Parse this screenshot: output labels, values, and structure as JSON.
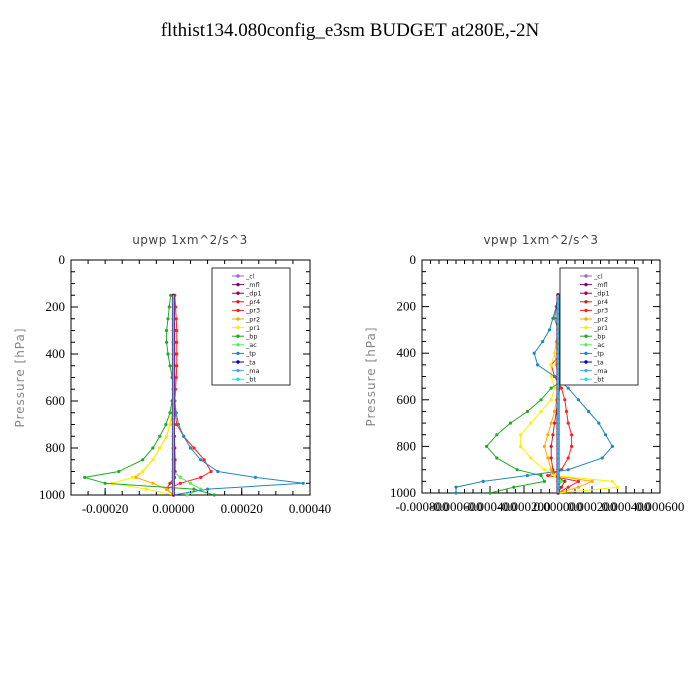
{
  "title": "flthist134.080config_e3sm  BUDGET at280E,-2N",
  "chart_data": [
    {
      "type": "line",
      "title": "upwp   1xm^2/s^3",
      "ylabel": "Pressure [hPa]",
      "xlabel": "",
      "xlim": [
        -0.0003,
        0.0004
      ],
      "ylim": [
        1000,
        0
      ],
      "xticks": [
        -0.0002,
        0.0,
        0.0002,
        0.0004
      ],
      "xtick_labels": [
        "-0.00020",
        "0.00000",
        "0.00020",
        "0.00040"
      ],
      "yticks": [
        0,
        200,
        400,
        600,
        800,
        1000
      ],
      "ytick_labels": [
        "0",
        "200",
        "400",
        "600",
        "800",
        "1000"
      ],
      "legend_position": "top-right",
      "pressure": [
        150,
        200,
        250,
        300,
        350,
        400,
        450,
        500,
        550,
        600,
        650,
        700,
        750,
        800,
        850,
        900,
        925,
        950,
        975,
        1000
      ],
      "series": [
        {
          "name": "_cl",
          "color": "#9966cc",
          "values": [
            0,
            0,
            0,
            0,
            0,
            0,
            0,
            0,
            0,
            0,
            0,
            0,
            0,
            0,
            0,
            0,
            0,
            0,
            0,
            0
          ]
        },
        {
          "name": "_mfl",
          "color": "#7a0a6e",
          "values": [
            0,
            0,
            0,
            0,
            0,
            0,
            0,
            0,
            0,
            0,
            0,
            0,
            0,
            0,
            0,
            0,
            0,
            0,
            0,
            0
          ]
        },
        {
          "name": "_dp1",
          "color": "#a00050",
          "values": [
            0,
            0,
            0,
            0,
            0,
            0,
            0,
            0,
            0,
            0,
            0,
            0,
            0,
            0,
            0,
            0,
            0,
            0,
            0,
            0
          ]
        },
        {
          "name": "_pr4",
          "color": "#cc2222",
          "values": [
            2e-06,
            3e-06,
            3e-06,
            4e-06,
            4e-06,
            4e-06,
            4e-06,
            4e-06,
            3e-06,
            3e-06,
            2e-06,
            2e-06,
            3e-06,
            4e-06,
            5e-06,
            5e-06,
            3e-06,
            -1e-05,
            -2e-05,
            0
          ]
        },
        {
          "name": "_pr3",
          "color": "#ff2020",
          "values": [
            4e-06,
            6e-06,
            8e-06,
            1e-05,
            1e-05,
            1e-05,
            1e-05,
            8e-06,
            6e-06,
            4e-06,
            5e-06,
            1e-05,
            3e-05,
            6e-05,
            9e-05,
            0.00011,
            8e-05,
            2e-05,
            -2e-05,
            0
          ]
        },
        {
          "name": "_pr2",
          "color": "#ffaa00",
          "values": [
            0,
            0,
            0,
            0,
            0,
            0,
            0,
            0,
            0,
            0,
            0,
            -1e-05,
            -2e-05,
            -4e-05,
            -6e-05,
            -9e-05,
            -0.00011,
            -6e-05,
            -2e-05,
            0
          ]
        },
        {
          "name": "_pr1",
          "color": "#ffee00",
          "values": [
            0,
            0,
            0,
            0,
            0,
            0,
            0,
            0,
            0,
            0,
            -5e-06,
            -1e-05,
            -2e-05,
            -4e-05,
            -6e-05,
            -9e-05,
            -0.00012,
            -0.00018,
            -8e-05,
            0
          ]
        },
        {
          "name": "_bp",
          "color": "#22aa22",
          "values": [
            -8e-06,
            -1.2e-05,
            -1.6e-05,
            -2e-05,
            -2e-05,
            -1.6e-05,
            -1e-05,
            -4e-06,
            0,
            -4e-06,
            -1e-05,
            -2.2e-05,
            -4e-05,
            -6e-05,
            -9e-05,
            -0.00016,
            -0.00026,
            -0.0002,
            6e-05,
            0.00012
          ]
        },
        {
          "name": "_ac",
          "color": "#55ee55",
          "values": [
            0,
            0,
            0,
            0,
            0,
            0,
            0,
            0,
            0,
            0,
            0,
            0,
            0,
            0,
            0,
            0,
            2e-05,
            5e-05,
            8e-05,
            4e-05
          ]
        },
        {
          "name": "_tp",
          "color": "#2288bb",
          "values": [
            0,
            0,
            0,
            0,
            0,
            0,
            0,
            0,
            2e-06,
            4e-06,
            8e-06,
            1.5e-05,
            3e-05,
            5e-05,
            8e-05,
            0.00013,
            0.00024,
            0.00038,
            0.0001,
            0
          ]
        },
        {
          "name": "_ta",
          "color": "#0000cc",
          "values": [
            0,
            0,
            0,
            0,
            0,
            0,
            0,
            0,
            0,
            0,
            0,
            0,
            0,
            0,
            0,
            0,
            0,
            0,
            0,
            0
          ]
        },
        {
          "name": "_ma",
          "color": "#44aaee",
          "values": [
            0,
            0,
            0,
            0,
            0,
            0,
            0,
            0,
            0,
            0,
            0,
            0,
            0,
            0,
            0,
            0,
            0,
            0,
            0,
            0
          ]
        },
        {
          "name": "_bt",
          "color": "#22dddd",
          "values": [
            0,
            0,
            0,
            0,
            0,
            0,
            0,
            0,
            0,
            0,
            0,
            0,
            0,
            0,
            0,
            0,
            0,
            0,
            0,
            0
          ]
        }
      ]
    },
    {
      "type": "line",
      "title": "vpwp   1xm^2/s^3",
      "ylabel": "Pressure [hPa]",
      "xlabel": "",
      "xlim": [
        -0.0008,
        0.0006
      ],
      "ylim": [
        1000,
        0
      ],
      "xticks": [
        -0.0008,
        -0.0006,
        -0.0004,
        -0.0002,
        0.0,
        0.0002,
        0.0004,
        0.0006
      ],
      "xtick_labels": [
        "-0.000800",
        "-0.000600",
        "-0.000400",
        "-0.000200",
        "0.000000",
        "0.000200",
        "0.000400",
        "0.000600"
      ],
      "yticks": [
        0,
        200,
        400,
        600,
        800,
        1000
      ],
      "ytick_labels": [
        "0",
        "200",
        "400",
        "600",
        "800",
        "1000"
      ],
      "legend_position": "top-right",
      "pressure": [
        150,
        200,
        250,
        300,
        350,
        400,
        450,
        500,
        550,
        600,
        650,
        700,
        750,
        800,
        850,
        900,
        925,
        950,
        975,
        1000
      ],
      "series": [
        {
          "name": "_cl",
          "color": "#9966cc",
          "values": [
            0,
            0,
            0,
            0,
            0,
            0,
            0,
            0,
            0,
            0,
            0,
            0,
            0,
            0,
            0,
            0,
            0,
            0,
            0,
            0
          ]
        },
        {
          "name": "_mfl",
          "color": "#7a0a6e",
          "values": [
            0,
            0,
            0,
            0,
            0,
            0,
            0,
            0,
            0,
            0,
            0,
            0,
            0,
            0,
            0,
            0,
            0,
            0,
            0,
            0
          ]
        },
        {
          "name": "_dp1",
          "color": "#a00050",
          "values": [
            0,
            0,
            0,
            0,
            0,
            0,
            0,
            0,
            0,
            0,
            0,
            0,
            0,
            0,
            0,
            0,
            0,
            0,
            0,
            0
          ]
        },
        {
          "name": "_pr4",
          "color": "#cc2222",
          "values": [
            0,
            0,
            0,
            0,
            0,
            1e-05,
            2e-05,
            2e-05,
            1e-05,
            0,
            -1e-05,
            -2e-05,
            -3e-05,
            -4e-05,
            -4e-05,
            -3e-05,
            -2e-05,
            4e-05,
            2e-05,
            0
          ]
        },
        {
          "name": "_pr3",
          "color": "#ff2020",
          "values": [
            0,
            1e-05,
            2e-05,
            4e-05,
            6e-05,
            2e-05,
            -4e-05,
            -2e-05,
            2e-05,
            4e-05,
            5e-05,
            6e-05,
            8e-05,
            8e-05,
            6e-05,
            2e-05,
            -6e-05,
            0.00012,
            6e-05,
            0
          ]
        },
        {
          "name": "_pr2",
          "color": "#ffaa00",
          "values": [
            0,
            1e-05,
            1e-05,
            0,
            -1e-05,
            -2e-05,
            -1e-05,
            0,
            0,
            -1e-05,
            -2e-05,
            -4e-05,
            -6e-05,
            -8e-05,
            -6e-05,
            -4e-05,
            -2e-05,
            0.0002,
            0.00012,
            0
          ]
        },
        {
          "name": "_pr1",
          "color": "#ffee00",
          "values": [
            0,
            1e-05,
            2e-05,
            2e-05,
            0,
            -2e-05,
            -4e-05,
            -4e-05,
            -2e-05,
            -4e-05,
            -0.0001,
            -0.00016,
            -0.00022,
            -0.00022,
            -0.00016,
            -8e-05,
            -2e-05,
            0.00032,
            0.00035,
            0
          ]
        },
        {
          "name": "_bp",
          "color": "#22aa22",
          "values": [
            0,
            -1e-05,
            -2e-05,
            0,
            4e-05,
            8e-05,
            0.00014,
            6e-05,
            -4e-05,
            -0.0001,
            -0.00018,
            -0.00028,
            -0.00036,
            -0.00042,
            -0.00036,
            -0.00024,
            -0.0001,
            -8e-05,
            -0.00026,
            -0.0004
          ]
        },
        {
          "name": "_ac",
          "color": "#55ee55",
          "values": [
            0,
            0,
            0,
            0,
            0,
            0,
            0,
            0,
            0,
            0,
            0,
            0,
            0,
            0,
            0,
            0,
            0,
            2e-05,
            0,
            0
          ]
        },
        {
          "name": "_tp",
          "color": "#2288bb",
          "values": [
            0,
            -1e-05,
            -3e-05,
            -5e-05,
            -9e-05,
            -0.00014,
            -0.00012,
            -2e-05,
            6e-05,
            0.00012,
            0.00018,
            0.00024,
            0.00028,
            0.00032,
            0.00026,
            6e-05,
            -0.00018,
            -0.00044,
            -0.0006,
            -0.0006
          ]
        },
        {
          "name": "_ta",
          "color": "#0000cc",
          "values": [
            0,
            0,
            0,
            0,
            0,
            0,
            0,
            0,
            0,
            0,
            0,
            0,
            0,
            0,
            0,
            0,
            0,
            0,
            0,
            0
          ]
        },
        {
          "name": "_ma",
          "color": "#44aaee",
          "values": [
            0,
            0,
            0,
            0,
            0,
            0,
            0,
            0,
            0,
            0,
            0,
            0,
            0,
            0,
            0,
            0,
            0,
            0,
            0,
            0
          ]
        },
        {
          "name": "_bt",
          "color": "#22dddd",
          "values": [
            0,
            0,
            0,
            0,
            0,
            0,
            0,
            0,
            0,
            0,
            0,
            0,
            0,
            0,
            0,
            0,
            0,
            0,
            0,
            0
          ]
        }
      ]
    }
  ]
}
